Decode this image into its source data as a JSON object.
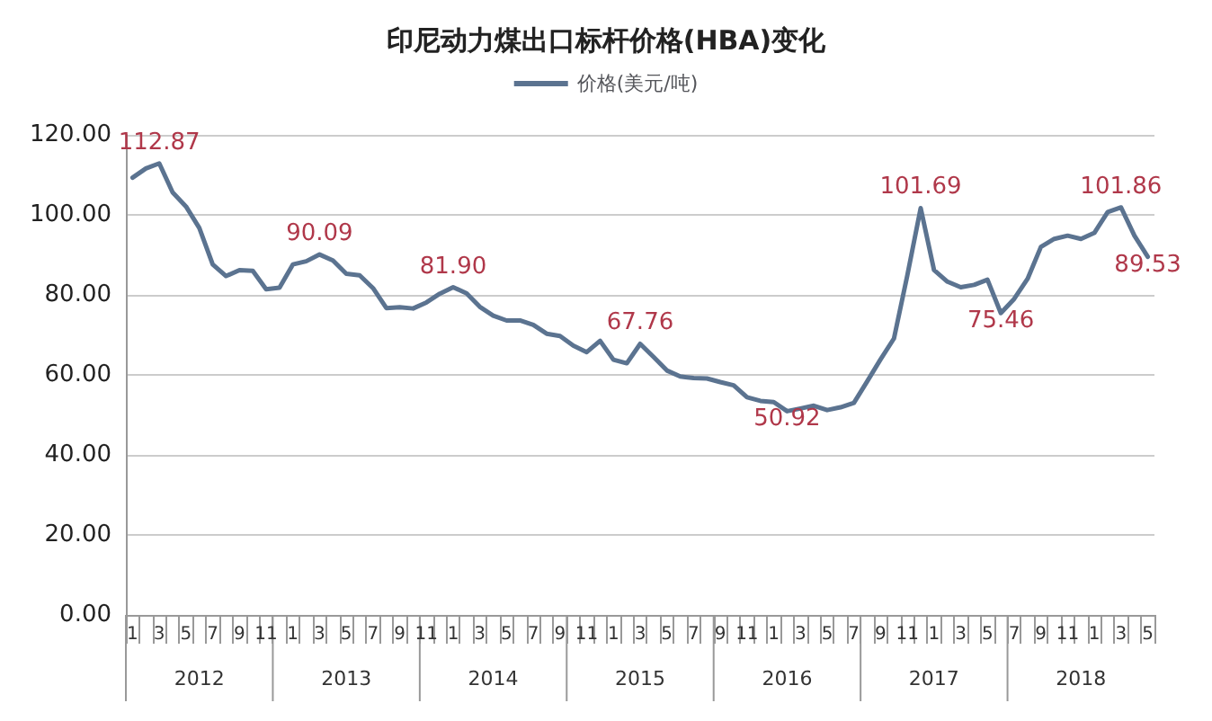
{
  "chart_data": {
    "type": "line",
    "title": "印尼动力煤出口标杆价格(HBA)变化",
    "categories": [
      "1",
      null,
      "3",
      null,
      "5",
      null,
      "7",
      null,
      "9",
      null,
      "11",
      null,
      "1",
      null,
      "3",
      null,
      "5",
      null,
      "7",
      null,
      "9",
      null,
      "11",
      null,
      "1",
      null,
      "3",
      null,
      "5",
      null,
      "7",
      null,
      "9",
      null,
      "11",
      null,
      "1",
      null,
      "3",
      null,
      "5",
      null,
      "7",
      null,
      "9",
      null,
      "11",
      null,
      "1",
      null,
      "3",
      null,
      "5",
      null,
      "7",
      null,
      "9",
      null,
      "11",
      null,
      "1",
      null,
      "3",
      null,
      "5",
      null,
      "7",
      null,
      "9",
      null,
      "11",
      null,
      "1",
      null,
      "3",
      null,
      "5"
    ],
    "series": [
      {
        "name": "价格(美元/吨)",
        "color": "#5b7390",
        "values": [
          109.3,
          111.6,
          112.87,
          105.6,
          102.1,
          96.7,
          87.6,
          84.7,
          86.2,
          86,
          81.4,
          81.8,
          87.6,
          88.4,
          90.09,
          88.6,
          85.3,
          84.9,
          81.7,
          76.7,
          76.9,
          76.6,
          78.1,
          80.3,
          81.9,
          80.4,
          77,
          74.8,
          73.6,
          73.6,
          72.5,
          70.3,
          69.7,
          67.3,
          65.7,
          68.5,
          63.8,
          62.9,
          67.76,
          64.5,
          61.1,
          59.6,
          59.2,
          59.1,
          58.2,
          57.4,
          54.4,
          53.5,
          53.2,
          50.92,
          51.6,
          52.3,
          51.2,
          51.9,
          53,
          58.4,
          63.9,
          69.1,
          84.9,
          101.69,
          86.2,
          83.3,
          81.9,
          82.5,
          83.8,
          75.46,
          79,
          84,
          92,
          94,
          94.8,
          94,
          95.5,
          100.7,
          101.86,
          94.8,
          89.53
        ],
        "value_labels": [
          null,
          null,
          "112.87",
          null,
          null,
          null,
          null,
          null,
          null,
          null,
          null,
          null,
          null,
          null,
          "90.09",
          null,
          null,
          null,
          null,
          null,
          null,
          null,
          null,
          null,
          "81.90",
          null,
          null,
          null,
          null,
          null,
          null,
          null,
          null,
          null,
          null,
          null,
          null,
          null,
          "67.76",
          null,
          null,
          null,
          null,
          null,
          null,
          null,
          null,
          null,
          null,
          "50.92",
          null,
          null,
          null,
          null,
          null,
          null,
          null,
          null,
          null,
          "101.69",
          null,
          null,
          null,
          null,
          null,
          "75.46",
          null,
          null,
          null,
          null,
          null,
          null,
          null,
          null,
          "101.86",
          null,
          "89.53"
        ]
      }
    ],
    "annotations": [
      "2012",
      "2013",
      "2014",
      "2015",
      "2016",
      "2017",
      "2018"
    ],
    "ylim": [
      0,
      120
    ],
    "yticks": [
      {
        "value": 0,
        "label": "0.00"
      },
      {
        "value": 20,
        "label": "20.00"
      },
      {
        "value": 40,
        "label": "40.00"
      },
      {
        "value": 60,
        "label": "60.00"
      },
      {
        "value": 80,
        "label": "80.00"
      },
      {
        "value": 100,
        "label": "100.00"
      },
      {
        "value": 120,
        "label": "120.00"
      }
    ],
    "grid": "y",
    "legend": "top",
    "marker": "none",
    "line_style": "solid"
  }
}
